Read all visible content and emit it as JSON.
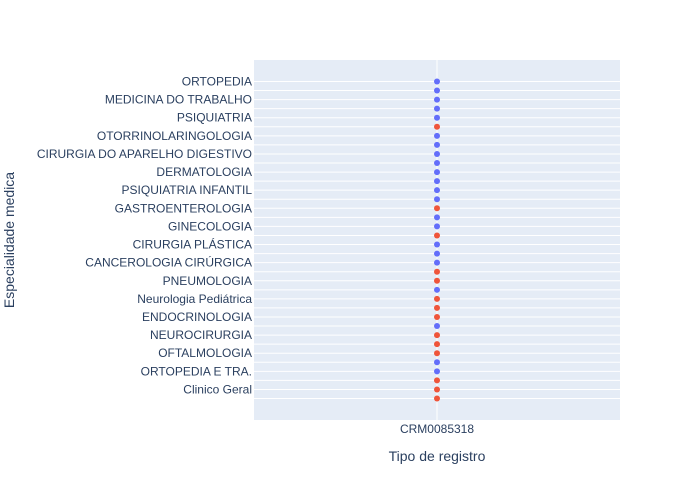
{
  "chart_data": {
    "type": "scatter",
    "xlabel": "Tipo de registro",
    "ylabel": "Especialidade medica",
    "x_categories": [
      "CRM0085318"
    ],
    "y_labels": [
      "ORTOPEDIA",
      "MEDICINA DO TRABALHO",
      "PSIQUIATRIA",
      "OTORRINOLARINGOLOGIA",
      "CIRURGIA DO APARELHO DIGESTIVO",
      "DERMATOLOGIA",
      "PSIQUIATRIA INFANTIL",
      "GASTROENTEROLOGIA",
      "GINECOLOGIA",
      "CIRURGIA PLÁSTICA",
      "CANCEROLOGIA CIRÚRGICA",
      "PNEUMOLOGIA",
      "Neurologia Pediátrica",
      "ENDOCRINOLOGIA",
      "NEUROCIRURGIA",
      "OFTALMOLOGIA",
      "ORTOPEDIA E TRA.",
      "Clinico Geral"
    ],
    "y_category_count": 36,
    "grid": true,
    "legend": "none",
    "colors": {
      "blue": "#636efa",
      "red": "#ef553b"
    },
    "points_colors_top_to_bottom": [
      "blue",
      "blue",
      "blue",
      "blue",
      "blue",
      "red",
      "blue",
      "blue",
      "blue",
      "blue",
      "blue",
      "blue",
      "blue",
      "blue",
      "red",
      "blue",
      "blue",
      "red",
      "blue",
      "blue",
      "blue",
      "red",
      "red",
      "blue",
      "red",
      "red",
      "red",
      "blue",
      "red",
      "red",
      "red",
      "blue",
      "blue",
      "red",
      "red",
      "red"
    ]
  }
}
